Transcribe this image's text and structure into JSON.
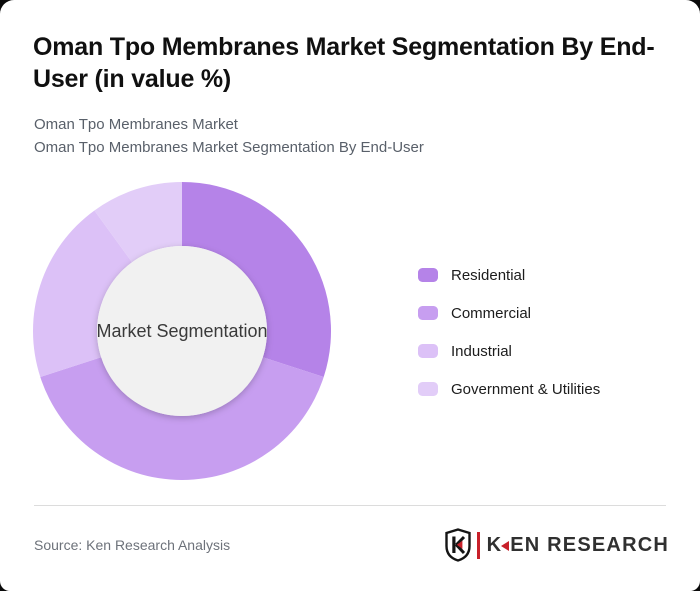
{
  "page": {
    "title": "Oman Tpo Membranes Market Segmentation By End-User (in value %)",
    "subtitle_line1": "Oman Tpo Membranes Market",
    "subtitle_line2": "Oman Tpo Membranes Market Segmentation By End-User"
  },
  "chart_data": {
    "type": "pie",
    "variant": "donut",
    "title": "Oman Tpo Membranes Market Segmentation By End-User (in value %)",
    "units": "value %",
    "center_label": "Market Segmentation",
    "start_angle_deg": 0,
    "direction": "clockwise",
    "legend_position": "right",
    "inner_circle_color": "#f1f1f1",
    "center_label_color": "#3a3a3a",
    "segments": [
      {
        "label": "Residential",
        "value": 30,
        "color": "#b583e8"
      },
      {
        "label": "Commercial",
        "value": 40,
        "color": "#c79ef0"
      },
      {
        "label": "Industrial",
        "value": 20,
        "color": "#dcc1f7"
      },
      {
        "label": "Government & Utilities",
        "value": 10,
        "color": "#e2cdf8"
      }
    ]
  },
  "footer": {
    "source": "Source: Ken Research Analysis",
    "logo": {
      "monogram": "K",
      "wordmark_prefix": "K",
      "wordmark_suffix": "EN RESEARCH",
      "accent_color": "#c8202a"
    }
  }
}
